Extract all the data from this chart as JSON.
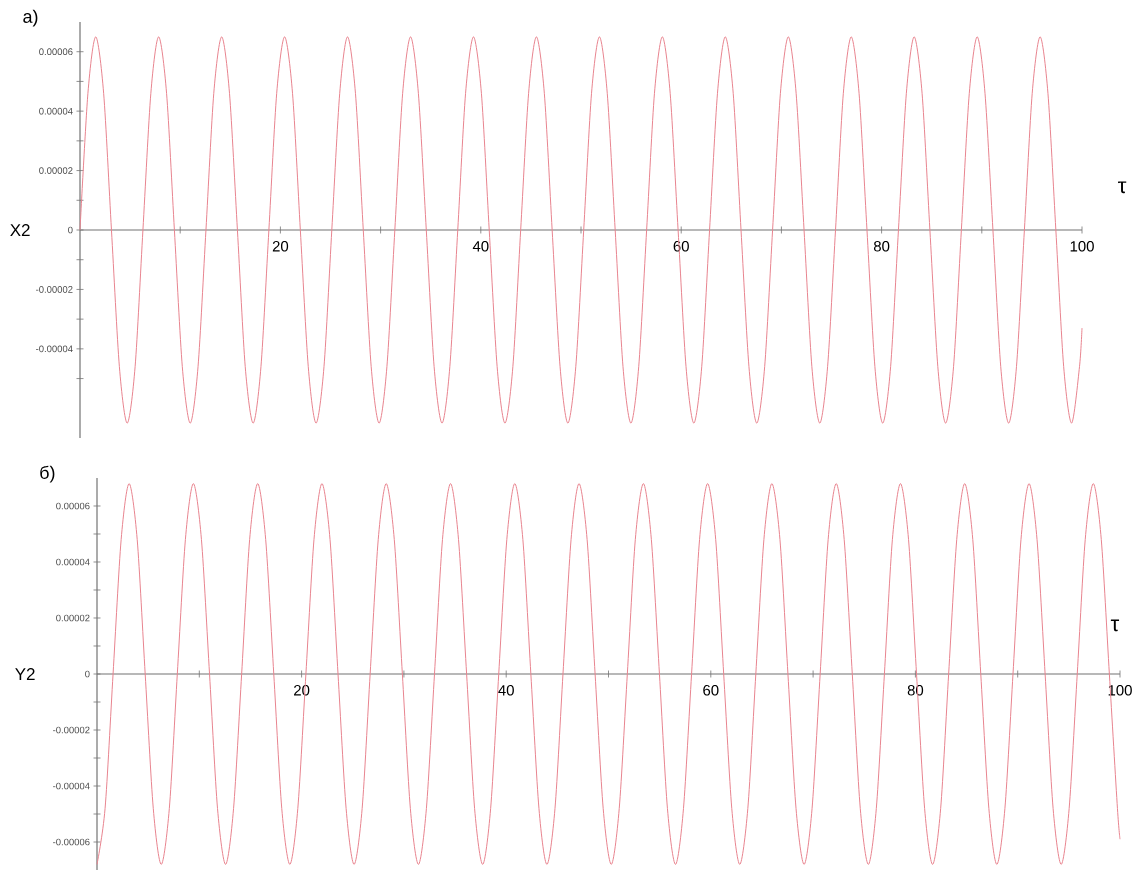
{
  "chart_data": [
    {
      "type": "line",
      "title": "a)",
      "xlabel": "τ",
      "ylabel": "X2",
      "color": "#e8848f",
      "xlim": [
        0,
        100
      ],
      "ylim": [
        -7e-05,
        7e-05
      ],
      "xticks": [
        {
          "value": 10,
          "label": null
        },
        20,
        {
          "value": 30,
          "label": null
        },
        40,
        {
          "value": 50,
          "label": null
        },
        60,
        {
          "value": 70,
          "label": null
        },
        80,
        {
          "value": 90,
          "label": null
        },
        100
      ],
      "yticks": [
        {
          "value": -5e-05,
          "label": null
        },
        {
          "value": -4e-05,
          "label": "-0.00004"
        },
        {
          "value": -3e-05,
          "label": null
        },
        {
          "value": -2e-05,
          "label": "-0.00002"
        },
        {
          "value": -1e-05,
          "label": null
        },
        0,
        {
          "value": 1e-05,
          "label": null
        },
        {
          "value": 2e-05,
          "label": "0.00002"
        },
        {
          "value": 3e-05,
          "label": null
        },
        {
          "value": 4e-05,
          "label": "0.00004"
        },
        {
          "value": 5e-05,
          "label": null
        },
        {
          "value": 6e-05,
          "label": "0.00006"
        }
      ],
      "x": [
        0,
        0.79,
        1.57,
        2.36,
        3.14,
        3.93,
        4.71,
        5.5,
        6.28,
        7.07,
        7.85,
        8.64,
        9.42,
        10.21,
        11.0,
        11.78,
        12.57,
        13.35,
        14.14,
        14.92,
        15.71,
        16.49,
        17.28,
        18.06,
        18.85,
        19.63,
        20.42,
        21.21,
        21.99,
        22.78,
        23.56,
        24.35,
        25.13,
        25.92,
        26.7,
        27.49,
        28.27,
        29.06,
        29.85,
        30.63,
        31.42,
        32.2,
        32.99,
        33.77,
        34.56,
        35.34,
        36.13,
        36.91,
        37.7,
        38.48,
        39.27,
        40.06,
        40.84,
        41.63,
        42.41,
        43.2,
        43.98,
        44.77,
        45.55,
        46.34,
        47.12,
        47.91,
        48.69,
        49.48,
        50.27,
        51.05,
        51.84,
        52.62,
        53.41,
        54.19,
        54.98,
        55.76,
        56.55,
        57.33,
        58.12,
        58.9,
        59.69,
        60.48,
        61.26,
        62.05,
        62.83,
        63.62,
        64.4,
        65.19,
        65.97,
        66.76,
        67.54,
        68.33,
        69.12,
        69.9,
        70.69,
        71.47,
        72.26,
        73.04,
        73.83,
        74.61,
        75.4,
        76.18,
        76.97,
        77.75,
        78.54,
        79.33,
        80.11,
        80.9,
        81.68,
        82.47,
        83.25,
        84.04,
        84.82,
        85.61,
        86.39,
        87.18,
        87.96,
        88.75,
        89.54,
        90.32,
        91.11,
        91.89,
        92.68,
        93.46,
        94.25,
        95.03,
        95.82,
        96.6,
        97.39,
        98.17,
        98.96,
        99.75,
        100
      ],
      "values": [
        0,
        4.6e-05,
        6.5e-05,
        4.6e-05,
        0,
        -4.6e-05,
        -6.5e-05,
        -4.6e-05,
        0,
        4.6e-05,
        6.5e-05,
        4.6e-05,
        0,
        -4.6e-05,
        -6.5e-05,
        -4.6e-05,
        0,
        4.6e-05,
        6.5e-05,
        4.6e-05,
        0,
        -4.6e-05,
        -6.5e-05,
        -4.6e-05,
        0,
        4.6e-05,
        6.5e-05,
        4.6e-05,
        0,
        -4.6e-05,
        -6.5e-05,
        -4.6e-05,
        0,
        4.6e-05,
        6.5e-05,
        4.6e-05,
        0,
        -4.6e-05,
        -6.5e-05,
        -4.6e-05,
        0,
        4.6e-05,
        6.5e-05,
        4.6e-05,
        0,
        -4.6e-05,
        -6.5e-05,
        -4.6e-05,
        0,
        4.6e-05,
        6.5e-05,
        4.6e-05,
        0,
        -4.6e-05,
        -6.5e-05,
        -4.6e-05,
        0,
        4.6e-05,
        6.5e-05,
        4.6e-05,
        0,
        -4.6e-05,
        -6.5e-05,
        -4.6e-05,
        0,
        4.6e-05,
        6.5e-05,
        4.6e-05,
        0,
        -4.6e-05,
        -6.5e-05,
        -4.6e-05,
        0,
        4.6e-05,
        6.5e-05,
        4.6e-05,
        0,
        -4.6e-05,
        -6.5e-05,
        -4.6e-05,
        0,
        4.6e-05,
        6.5e-05,
        4.6e-05,
        0,
        -4.6e-05,
        -6.5e-05,
        -4.6e-05,
        0,
        4.6e-05,
        6.5e-05,
        4.6e-05,
        0,
        -4.6e-05,
        -6.5e-05,
        -4.6e-05,
        0,
        4.6e-05,
        6.5e-05,
        4.6e-05,
        0,
        -4.6e-05,
        -6.5e-05,
        -4.6e-05,
        0,
        4.6e-05,
        6.5e-05,
        4.6e-05,
        0,
        -4.6e-05,
        -6.5e-05,
        -4.6e-05,
        0,
        4.6e-05,
        6.5e-05,
        4.6e-05,
        0,
        -4.6e-05,
        -6.5e-05,
        -4.6e-05,
        0,
        4.6e-05,
        6.5e-05,
        4.6e-05,
        0,
        -4.6e-05,
        -6.5e-05,
        -4.6e-05,
        -3.3e-05
      ]
    },
    {
      "type": "line",
      "title": "б)",
      "xlabel": "τ",
      "ylabel": "Y2",
      "color": "#e8848f",
      "xlim": [
        0,
        100
      ],
      "ylim": [
        -7e-05,
        7e-05
      ],
      "xticks": [
        {
          "value": 10,
          "label": null
        },
        20,
        {
          "value": 30,
          "label": null
        },
        40,
        {
          "value": 50,
          "label": null
        },
        60,
        {
          "value": 70,
          "label": null
        },
        80,
        {
          "value": 90,
          "label": null
        },
        100
      ],
      "yticks": [
        {
          "value": -6e-05,
          "label": "-0.00006"
        },
        {
          "value": -5e-05,
          "label": null
        },
        {
          "value": -4e-05,
          "label": "-0.00004"
        },
        {
          "value": -3e-05,
          "label": null
        },
        {
          "value": -2e-05,
          "label": "-0.00002"
        },
        {
          "value": -1e-05,
          "label": null
        },
        0,
        {
          "value": 1e-05,
          "label": null
        },
        {
          "value": 2e-05,
          "label": "0.00002"
        },
        {
          "value": 3e-05,
          "label": null
        },
        {
          "value": 4e-05,
          "label": "0.00004"
        },
        {
          "value": 5e-05,
          "label": null
        },
        {
          "value": 6e-05,
          "label": "0.00006"
        }
      ],
      "x": [
        0,
        0.79,
        1.57,
        2.36,
        3.14,
        3.93,
        4.71,
        5.5,
        6.28,
        7.07,
        7.85,
        8.64,
        9.42,
        10.21,
        11.0,
        11.78,
        12.57,
        13.35,
        14.14,
        14.92,
        15.71,
        16.49,
        17.28,
        18.06,
        18.85,
        19.63,
        20.42,
        21.21,
        21.99,
        22.78,
        23.56,
        24.35,
        25.13,
        25.92,
        26.7,
        27.49,
        28.27,
        29.06,
        29.85,
        30.63,
        31.42,
        32.2,
        32.99,
        33.77,
        34.56,
        35.34,
        36.13,
        36.91,
        37.7,
        38.48,
        39.27,
        40.06,
        40.84,
        41.63,
        42.41,
        43.2,
        43.98,
        44.77,
        45.55,
        46.34,
        47.12,
        47.91,
        48.69,
        49.48,
        50.27,
        51.05,
        51.84,
        52.62,
        53.41,
        54.19,
        54.98,
        55.76,
        56.55,
        57.33,
        58.12,
        58.9,
        59.69,
        60.48,
        61.26,
        62.05,
        62.83,
        63.62,
        64.4,
        65.19,
        65.97,
        66.76,
        67.54,
        68.33,
        69.12,
        69.9,
        70.69,
        71.47,
        72.26,
        73.04,
        73.83,
        74.61,
        75.4,
        76.18,
        76.97,
        77.75,
        78.54,
        79.33,
        80.11,
        80.9,
        81.68,
        82.47,
        83.25,
        84.04,
        84.82,
        85.61,
        86.39,
        87.18,
        87.96,
        88.75,
        89.54,
        90.32,
        91.11,
        91.89,
        92.68,
        93.46,
        94.25,
        95.03,
        95.82,
        96.6,
        97.39,
        98.17,
        98.96,
        99.75,
        100
      ],
      "values": [
        -6.8e-05,
        -4.8e-05,
        0,
        4.8e-05,
        6.8e-05,
        4.8e-05,
        0,
        -4.8e-05,
        -6.8e-05,
        -4.8e-05,
        0,
        4.8e-05,
        6.8e-05,
        4.8e-05,
        0,
        -4.8e-05,
        -6.8e-05,
        -4.8e-05,
        0,
        4.8e-05,
        6.8e-05,
        4.8e-05,
        0,
        -4.8e-05,
        -6.8e-05,
        -4.8e-05,
        0,
        4.8e-05,
        6.8e-05,
        4.8e-05,
        0,
        -4.8e-05,
        -6.8e-05,
        -4.8e-05,
        0,
        4.8e-05,
        6.8e-05,
        4.8e-05,
        0,
        -4.8e-05,
        -6.8e-05,
        -4.8e-05,
        0,
        4.8e-05,
        6.8e-05,
        4.8e-05,
        0,
        -4.8e-05,
        -6.8e-05,
        -4.8e-05,
        0,
        4.8e-05,
        6.8e-05,
        4.8e-05,
        0,
        -4.8e-05,
        -6.8e-05,
        -4.8e-05,
        0,
        4.8e-05,
        6.8e-05,
        4.8e-05,
        0,
        -4.8e-05,
        -6.8e-05,
        -4.8e-05,
        0,
        4.8e-05,
        6.8e-05,
        4.8e-05,
        0,
        -4.8e-05,
        -6.8e-05,
        -4.8e-05,
        0,
        4.8e-05,
        6.8e-05,
        4.8e-05,
        0,
        -4.8e-05,
        -6.8e-05,
        -4.8e-05,
        0,
        4.8e-05,
        6.8e-05,
        4.8e-05,
        0,
        -4.8e-05,
        -6.8e-05,
        -4.8e-05,
        0,
        4.8e-05,
        6.8e-05,
        4.8e-05,
        0,
        -4.8e-05,
        -6.8e-05,
        -4.8e-05,
        0,
        4.8e-05,
        6.8e-05,
        4.8e-05,
        0,
        -4.8e-05,
        -6.8e-05,
        -4.8e-05,
        0,
        4.8e-05,
        6.8e-05,
        4.8e-05,
        0,
        -4.8e-05,
        -6.8e-05,
        -4.8e-05,
        0,
        4.8e-05,
        6.8e-05,
        4.8e-05,
        0,
        -4.8e-05,
        -6.8e-05,
        -4.8e-05,
        0,
        4.8e-05,
        6.8e-05,
        4.8e-05,
        0,
        -4.8e-05,
        -5.9e-05
      ]
    }
  ]
}
